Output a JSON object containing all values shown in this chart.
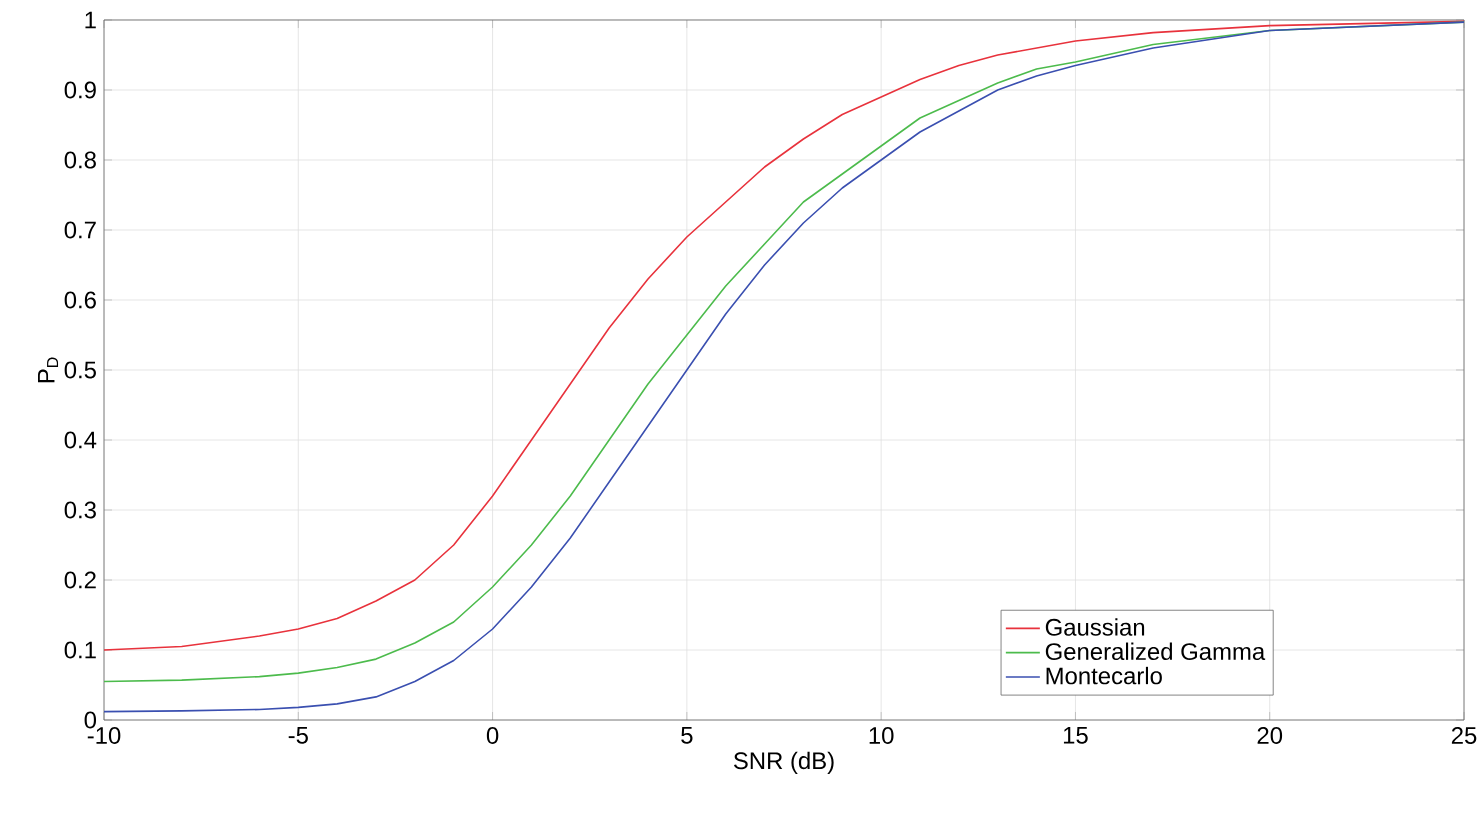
{
  "chart_data": {
    "type": "line",
    "xlabel": "SNR (dB)",
    "ylabel": "P$_{D}$",
    "xlim": [
      -10,
      25
    ],
    "ylim": [
      0,
      1
    ],
    "xticks": [
      -10,
      -5,
      0,
      5,
      10,
      15,
      20,
      25
    ],
    "yticks": [
      0,
      0.1,
      0.2,
      0.3,
      0.4,
      0.5,
      0.6,
      0.7,
      0.8,
      0.9,
      1
    ],
    "grid": true,
    "legend": "bottom right",
    "marker": "none",
    "line_style": "solid",
    "x": [
      -10,
      -8,
      -6,
      -5,
      -4,
      -3,
      -2,
      -1,
      0,
      1,
      2,
      3,
      4,
      5,
      6,
      7,
      8,
      9,
      10,
      11,
      12,
      13,
      14,
      15,
      17,
      20,
      25
    ],
    "series": [
      {
        "name": "Gaussian",
        "color": "#e8323c",
        "values": [
          0.1,
          0.105,
          0.12,
          0.13,
          0.145,
          0.17,
          0.2,
          0.25,
          0.32,
          0.4,
          0.48,
          0.56,
          0.63,
          0.69,
          0.74,
          0.79,
          0.83,
          0.865,
          0.89,
          0.915,
          0.935,
          0.95,
          0.96,
          0.97,
          0.982,
          0.992,
          0.998
        ]
      },
      {
        "name": "Generalized Gamma",
        "color": "#4cbb4c",
        "values": [
          0.055,
          0.057,
          0.062,
          0.067,
          0.075,
          0.087,
          0.11,
          0.14,
          0.19,
          0.25,
          0.32,
          0.4,
          0.48,
          0.55,
          0.62,
          0.68,
          0.74,
          0.78,
          0.82,
          0.86,
          0.885,
          0.91,
          0.93,
          0.94,
          0.965,
          0.985,
          0.997
        ]
      },
      {
        "name": "Montecarlo",
        "color": "#3a4fb0",
        "values": [
          0.012,
          0.013,
          0.015,
          0.018,
          0.023,
          0.033,
          0.055,
          0.085,
          0.13,
          0.19,
          0.26,
          0.34,
          0.42,
          0.5,
          0.58,
          0.65,
          0.71,
          0.76,
          0.8,
          0.84,
          0.87,
          0.9,
          0.92,
          0.935,
          0.96,
          0.985,
          0.997
        ]
      }
    ]
  }
}
